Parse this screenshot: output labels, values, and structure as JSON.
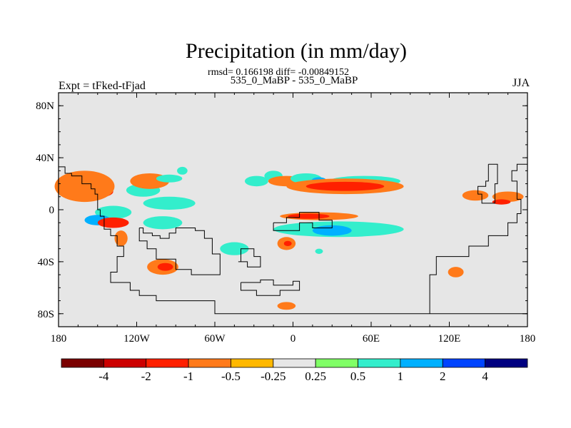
{
  "title": "Precipitation (in mm/day)",
  "stats_line": "rmsd= 0.166198 diff= -0.00849152",
  "runs_line": "535_0_MaBP - 535_0_MaBP",
  "left_label": "Expt = tFked-tFjad",
  "right_label": "JJA",
  "chart_data": {
    "type": "heatmap",
    "title": "Precipitation (in mm/day)",
    "subtitle": "rmsd= 0.166198 diff= -0.00849152",
    "x_ticks": [
      "180",
      "120W",
      "60W",
      "0",
      "60E",
      "120E",
      "180"
    ],
    "x_tick_values": [
      -180,
      -120,
      -60,
      0,
      60,
      120,
      180
    ],
    "y_ticks": [
      "80N",
      "40N",
      "0",
      "40S",
      "80S"
    ],
    "y_tick_values": [
      80,
      40,
      0,
      -40,
      -80
    ],
    "xlim": [
      -180,
      180
    ],
    "ylim": [
      -90,
      90
    ],
    "units": "mm/day",
    "contour_levels": [
      -4,
      -2,
      -1,
      -0.5,
      -0.25,
      0.25,
      0.5,
      1,
      2,
      4
    ],
    "colorbar_labels": [
      "-4",
      "-2",
      "-1",
      "-0.5",
      "-0.25",
      "0.25",
      "0.5",
      "1",
      "2",
      "4"
    ],
    "colorbar_colors": [
      "#7a0000",
      "#cc0000",
      "#ff2000",
      "#ff7a1a",
      "#ffb800",
      "#e6e6e6",
      "#80ff66",
      "#33eecc",
      "#00b0ff",
      "#0044ff",
      "#000080"
    ],
    "background_value_color": "#e6e6e6",
    "regions": [
      {
        "lon": -152,
        "lat": 14,
        "w": 28,
        "h": 10,
        "level": -1
      },
      {
        "lon": -160,
        "lat": 18,
        "w": 46,
        "h": 24,
        "level": -0.5
      },
      {
        "lon": -138,
        "lat": -2,
        "w": 28,
        "h": 10,
        "level": 0.5
      },
      {
        "lon": -150,
        "lat": -8,
        "w": 20,
        "h": 8,
        "level": 1
      },
      {
        "lon": -138,
        "lat": -10,
        "w": 24,
        "h": 8,
        "level": -1
      },
      {
        "lon": -132,
        "lat": -22,
        "w": 10,
        "h": 12,
        "level": -0.5
      },
      {
        "lon": -95,
        "lat": 5,
        "w": 40,
        "h": 10,
        "level": 0.5
      },
      {
        "lon": -100,
        "lat": -10,
        "w": 30,
        "h": 10,
        "level": 0.5
      },
      {
        "lon": -115,
        "lat": 15,
        "w": 26,
        "h": 10,
        "level": 0.5
      },
      {
        "lon": -110,
        "lat": 22,
        "w": 30,
        "h": 12,
        "level": -0.5
      },
      {
        "lon": -85,
        "lat": 30,
        "w": 8,
        "h": 6,
        "level": 0.5
      },
      {
        "lon": -45,
        "lat": -30,
        "w": 22,
        "h": 10,
        "level": 0.5
      },
      {
        "lon": -100,
        "lat": -44,
        "w": 24,
        "h": 12,
        "level": -0.5
      },
      {
        "lon": -98,
        "lat": -44,
        "w": 12,
        "h": 6,
        "level": -1
      },
      {
        "lon": -28,
        "lat": 22,
        "w": 18,
        "h": 8,
        "level": 0.5
      },
      {
        "lon": -15,
        "lat": 26,
        "w": 14,
        "h": 8,
        "level": 0.5
      },
      {
        "lon": -5,
        "lat": 22,
        "w": 28,
        "h": 8,
        "level": -0.5
      },
      {
        "lon": 10,
        "lat": 24,
        "w": 24,
        "h": 8,
        "level": 0.5
      },
      {
        "lon": 20,
        "lat": 22,
        "w": 12,
        "h": 6,
        "level": 1
      },
      {
        "lon": 55,
        "lat": 22,
        "w": 55,
        "h": 8,
        "level": 0.5
      },
      {
        "lon": 40,
        "lat": 18,
        "w": 90,
        "h": 12,
        "level": -0.5
      },
      {
        "lon": 40,
        "lat": 18,
        "w": 60,
        "h": 7,
        "level": -1
      },
      {
        "lon": 20,
        "lat": -5,
        "w": 60,
        "h": 6,
        "level": -0.5
      },
      {
        "lon": 12,
        "lat": -5,
        "w": 32,
        "h": 4,
        "level": -1
      },
      {
        "lon": 35,
        "lat": -15,
        "w": 100,
        "h": 12,
        "level": 0.5
      },
      {
        "lon": 30,
        "lat": -16,
        "w": 30,
        "h": 8,
        "level": 1
      },
      {
        "lon": -5,
        "lat": -26,
        "w": 14,
        "h": 10,
        "level": -0.5
      },
      {
        "lon": -4,
        "lat": -26,
        "w": 6,
        "h": 4,
        "level": -1
      },
      {
        "lon": 20,
        "lat": -32,
        "w": 6,
        "h": 4,
        "level": 0.5
      },
      {
        "lon": 125,
        "lat": -48,
        "w": 12,
        "h": 8,
        "level": -0.5
      },
      {
        "lon": 140,
        "lat": 11,
        "w": 20,
        "h": 8,
        "level": -0.5
      },
      {
        "lon": 165,
        "lat": 10,
        "w": 24,
        "h": 8,
        "level": -0.5
      },
      {
        "lon": 160,
        "lat": 6,
        "w": 14,
        "h": 4,
        "level": -1
      },
      {
        "lon": -5,
        "lat": -74,
        "w": 14,
        "h": 6,
        "level": -0.5
      },
      {
        "lon": -95,
        "lat": 24,
        "w": 20,
        "h": 6,
        "level": 0.5
      }
    ]
  },
  "coastline_path_lonlat": [
    [
      [
        -180,
        33
      ],
      [
        -175,
        33
      ],
      [
        -175,
        28
      ],
      [
        -170,
        28
      ],
      [
        -170,
        26
      ],
      [
        -162,
        26
      ],
      [
        -162,
        20
      ],
      [
        -155,
        20
      ],
      [
        -155,
        16
      ],
      [
        -152,
        16
      ],
      [
        -152,
        12
      ],
      [
        -150,
        12
      ],
      [
        -150,
        0
      ],
      [
        -148,
        0
      ],
      [
        -148,
        -5
      ],
      [
        -145,
        -5
      ],
      [
        -145,
        -15
      ],
      [
        -140,
        -15
      ],
      [
        -140,
        -20
      ],
      [
        -135,
        -20
      ],
      [
        -135,
        -28
      ],
      [
        -130,
        -28
      ],
      [
        -130,
        -36
      ],
      [
        -135,
        -36
      ],
      [
        -135,
        -48
      ],
      [
        -140,
        -48
      ],
      [
        -140,
        -56
      ],
      [
        -125,
        -56
      ],
      [
        -125,
        -62
      ],
      [
        -118,
        -62
      ],
      [
        -118,
        -66
      ],
      [
        -105,
        -66
      ],
      [
        -105,
        -70
      ],
      [
        -60,
        -70
      ],
      [
        -60,
        -80
      ],
      [
        180,
        -80
      ]
    ],
    [
      [
        -118,
        -14
      ],
      [
        -115,
        -14
      ],
      [
        -115,
        -18
      ],
      [
        -108,
        -18
      ],
      [
        -108,
        -20
      ],
      [
        -102,
        -20
      ],
      [
        -102,
        -22
      ],
      [
        -95,
        -22
      ],
      [
        -95,
        -18
      ],
      [
        -90,
        -18
      ],
      [
        -90,
        -14
      ],
      [
        -75,
        -14
      ],
      [
        -75,
        -16
      ],
      [
        -68,
        -16
      ],
      [
        -68,
        -22
      ],
      [
        -62,
        -22
      ],
      [
        -62,
        -34
      ],
      [
        -56,
        -34
      ],
      [
        -56,
        -50
      ],
      [
        -78,
        -50
      ],
      [
        -78,
        -46
      ],
      [
        -90,
        -46
      ],
      [
        -90,
        -38
      ],
      [
        -105,
        -38
      ],
      [
        -105,
        -30
      ],
      [
        -112,
        -30
      ],
      [
        -112,
        -24
      ],
      [
        -118,
        -24
      ],
      [
        -118,
        -14
      ]
    ],
    [
      [
        -15,
        -10
      ],
      [
        -5,
        -10
      ],
      [
        -5,
        -6
      ],
      [
        5,
        -6
      ],
      [
        5,
        -2
      ],
      [
        20,
        -2
      ],
      [
        20,
        -8
      ],
      [
        30,
        -8
      ],
      [
        30,
        -14
      ],
      [
        15,
        -14
      ],
      [
        15,
        -10
      ],
      [
        5,
        -10
      ],
      [
        5,
        -16
      ],
      [
        -15,
        -16
      ],
      [
        -15,
        -10
      ]
    ],
    [
      [
        -40,
        -56
      ],
      [
        -25,
        -56
      ],
      [
        -25,
        -54
      ],
      [
        -15,
        -54
      ],
      [
        -15,
        -58
      ],
      [
        0,
        -58
      ],
      [
        0,
        -55
      ],
      [
        5,
        -55
      ],
      [
        5,
        -62
      ],
      [
        -10,
        -62
      ],
      [
        -10,
        -66
      ],
      [
        -28,
        -66
      ],
      [
        -28,
        -62
      ],
      [
        -40,
        -62
      ],
      [
        -40,
        -56
      ]
    ],
    [
      [
        150,
        35
      ],
      [
        157,
        35
      ],
      [
        157,
        20
      ],
      [
        155,
        20
      ],
      [
        155,
        5
      ],
      [
        145,
        5
      ],
      [
        145,
        12
      ],
      [
        142,
        12
      ],
      [
        142,
        18
      ],
      [
        148,
        18
      ],
      [
        148,
        22
      ],
      [
        150,
        22
      ],
      [
        150,
        35
      ]
    ],
    [
      [
        180,
        35
      ],
      [
        172,
        35
      ],
      [
        172,
        30
      ],
      [
        168,
        30
      ],
      [
        168,
        22
      ],
      [
        172,
        22
      ],
      [
        172,
        8
      ],
      [
        175,
        8
      ],
      [
        175,
        -3
      ],
      [
        172,
        -3
      ],
      [
        172,
        -10
      ],
      [
        165,
        -10
      ],
      [
        165,
        -20
      ],
      [
        150,
        -20
      ],
      [
        150,
        -28
      ],
      [
        135,
        -28
      ],
      [
        135,
        -36
      ],
      [
        110,
        -36
      ],
      [
        110,
        -50
      ],
      [
        105,
        -50
      ],
      [
        105,
        -80
      ]
    ],
    [
      [
        -42,
        -40
      ],
      [
        -35,
        -40
      ],
      [
        -35,
        -44
      ],
      [
        -25,
        -44
      ],
      [
        -25,
        -36
      ],
      [
        -30,
        -36
      ],
      [
        -30,
        -30
      ],
      [
        -40,
        -30
      ],
      [
        -40,
        -40
      ]
    ]
  ]
}
